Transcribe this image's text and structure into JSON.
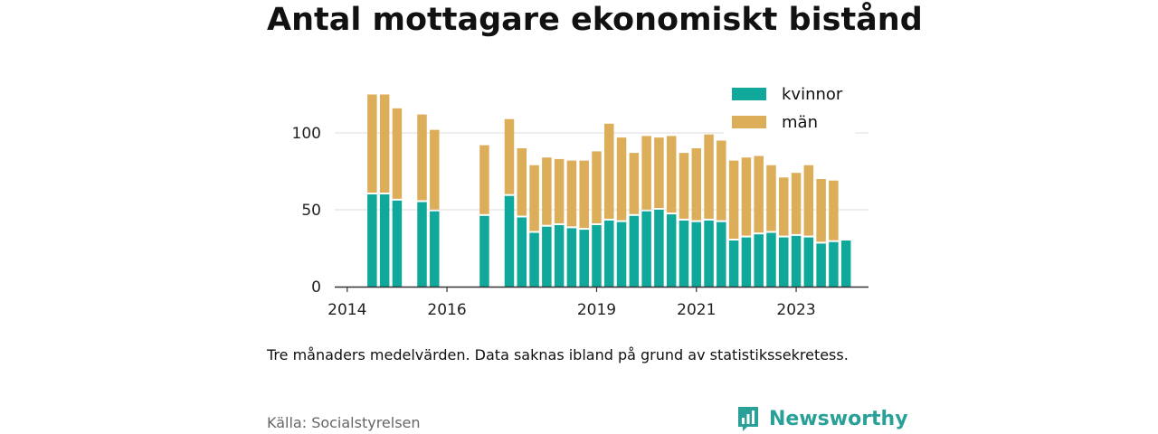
{
  "title": "Antal mottagare ekonomiskt bistånd",
  "note": "Tre månaders medelvärden. Data saknas ibland på grund av statistikssekretess.",
  "source": "Källa: Socialstyrelsen",
  "brand": {
    "name": "Newsworthy",
    "icon": "bar-chart-logo-icon",
    "color": "#2aa198"
  },
  "chart_data": {
    "type": "bar",
    "stacked": true,
    "title": "Antal mottagare ekonomiskt bistånd",
    "xlabel": "",
    "ylabel": "",
    "ylim": [
      0,
      125
    ],
    "yticks": [
      0,
      50,
      100
    ],
    "xlim": [
      2013.75,
      2024.45
    ],
    "xticks": [
      "2014",
      "2016",
      "2019",
      "2021",
      "2023"
    ],
    "grid": true,
    "legend_position": "top-right",
    "colors": {
      "kvinnor": "#0fa89a",
      "män": "#dcae5a"
    },
    "x": [
      2014.5,
      2014.75,
      2015.0,
      2015.5,
      2015.75,
      2016.75,
      2017.25,
      2017.5,
      2017.75,
      2018.0,
      2018.25,
      2018.5,
      2018.75,
      2019.0,
      2019.25,
      2019.5,
      2019.75,
      2020.0,
      2020.25,
      2020.5,
      2020.75,
      2021.0,
      2021.25,
      2021.5,
      2021.75,
      2022.0,
      2022.25,
      2022.5,
      2022.75,
      2023.0,
      2023.25,
      2023.5,
      2023.75,
      2024.0
    ],
    "series": [
      {
        "name": "kvinnor",
        "values": [
          60,
          60,
          56,
          55,
          49,
          46,
          59,
          45,
          35,
          39,
          40,
          38,
          37,
          40,
          43,
          42,
          46,
          49,
          50,
          47,
          43,
          42,
          43,
          42,
          30,
          32,
          34,
          35,
          32,
          33,
          32,
          28,
          29,
          30
        ]
      },
      {
        "name": "män",
        "values": [
          65,
          65,
          60,
          57,
          53,
          46,
          50,
          45,
          44,
          45,
          43,
          44,
          45,
          48,
          63,
          55,
          41,
          49,
          47,
          51,
          44,
          48,
          56,
          53,
          52,
          52,
          51,
          44,
          39,
          41,
          47,
          42,
          40,
          0
        ]
      }
    ]
  }
}
